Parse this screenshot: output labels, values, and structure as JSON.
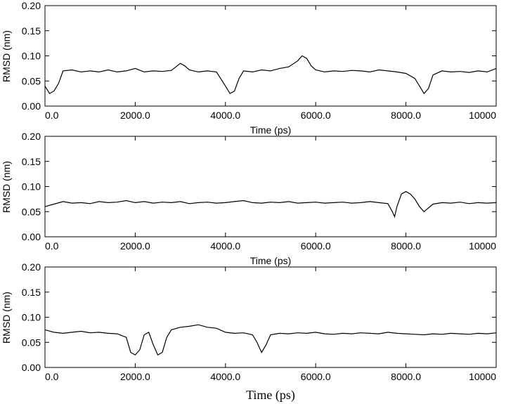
{
  "chart_data": [
    {
      "type": "line",
      "xlabel": "Time (ps)",
      "ylabel": "RMSD (nm)",
      "xlim": [
        0,
        10000
      ],
      "ylim": [
        0,
        0.2
      ],
      "xticks": [
        "0.0",
        "2000.0",
        "4000.0",
        "6000.0",
        "8000.0",
        "10000"
      ],
      "yticks": [
        "0.00",
        "0.05",
        "0.10",
        "0.15",
        "0.20"
      ],
      "line_color": "#000000",
      "series": [
        {
          "x": [
            0,
            100,
            200,
            300,
            400,
            600,
            800,
            1000,
            1200,
            1400,
            1600,
            1800,
            2000,
            2200,
            2400,
            2600,
            2800,
            3000,
            3100,
            3200,
            3400,
            3600,
            3800,
            4000,
            4100,
            4200,
            4300,
            4400,
            4600,
            4800,
            5000,
            5200,
            5400,
            5600,
            5700,
            5800,
            5900,
            6000,
            6200,
            6400,
            6600,
            6800,
            7000,
            7200,
            7400,
            7600,
            7800,
            8000,
            8200,
            8300,
            8400,
            8500,
            8600,
            8800,
            9000,
            9200,
            9400,
            9600,
            9800,
            10000
          ],
          "y": [
            0.04,
            0.025,
            0.03,
            0.045,
            0.07,
            0.072,
            0.068,
            0.07,
            0.068,
            0.072,
            0.068,
            0.07,
            0.075,
            0.068,
            0.07,
            0.069,
            0.071,
            0.085,
            0.08,
            0.072,
            0.068,
            0.07,
            0.068,
            0.04,
            0.025,
            0.03,
            0.055,
            0.07,
            0.068,
            0.072,
            0.07,
            0.075,
            0.078,
            0.09,
            0.1,
            0.095,
            0.08,
            0.072,
            0.068,
            0.07,
            0.069,
            0.071,
            0.07,
            0.068,
            0.072,
            0.07,
            0.068,
            0.065,
            0.055,
            0.04,
            0.025,
            0.035,
            0.062,
            0.07,
            0.068,
            0.069,
            0.067,
            0.07,
            0.068,
            0.075
          ]
        }
      ]
    },
    {
      "type": "line",
      "xlabel": "Time (ps)",
      "ylabel": "RMSD (nm)",
      "xlim": [
        0,
        10000
      ],
      "ylim": [
        0,
        0.2
      ],
      "xticks": [
        "0.0",
        "2000.0",
        "4000.0",
        "6000.0",
        "8000.0",
        "10000"
      ],
      "yticks": [
        "0.00",
        "0.05",
        "0.10",
        "0.15",
        "0.20"
      ],
      "line_color": "#000000",
      "series": [
        {
          "x": [
            0,
            200,
            400,
            600,
            800,
            1000,
            1200,
            1400,
            1600,
            1800,
            2000,
            2200,
            2400,
            2600,
            2800,
            3000,
            3200,
            3400,
            3600,
            3800,
            4000,
            4200,
            4400,
            4600,
            4800,
            5000,
            5200,
            5400,
            5600,
            5800,
            6000,
            6200,
            6400,
            6600,
            6800,
            7000,
            7200,
            7400,
            7600,
            7700,
            7750,
            7800,
            7900,
            8000,
            8100,
            8200,
            8300,
            8400,
            8600,
            8800,
            9000,
            9200,
            9400,
            9600,
            9800,
            10000
          ],
          "y": [
            0.06,
            0.065,
            0.07,
            0.067,
            0.068,
            0.066,
            0.07,
            0.068,
            0.069,
            0.072,
            0.068,
            0.07,
            0.067,
            0.069,
            0.068,
            0.07,
            0.066,
            0.068,
            0.069,
            0.067,
            0.068,
            0.07,
            0.072,
            0.068,
            0.067,
            0.069,
            0.068,
            0.07,
            0.067,
            0.068,
            0.069,
            0.067,
            0.068,
            0.069,
            0.067,
            0.068,
            0.07,
            0.068,
            0.066,
            0.05,
            0.04,
            0.06,
            0.085,
            0.09,
            0.085,
            0.075,
            0.06,
            0.05,
            0.065,
            0.068,
            0.067,
            0.069,
            0.066,
            0.068,
            0.067,
            0.068
          ]
        }
      ]
    },
    {
      "type": "line",
      "xlabel": "Time (ps)",
      "ylabel": "RMSD (nm)",
      "xlim": [
        0,
        10000
      ],
      "ylim": [
        0,
        0.2
      ],
      "xticks": [
        "0.0",
        "2000.0",
        "4000.0",
        "6000.0",
        "8000.0",
        "10000"
      ],
      "yticks": [
        "0.00",
        "0.05",
        "0.10",
        "0.15",
        "0.20"
      ],
      "line_color": "#000000",
      "series": [
        {
          "x": [
            0,
            200,
            400,
            600,
            800,
            1000,
            1200,
            1400,
            1600,
            1800,
            1900,
            2000,
            2100,
            2200,
            2300,
            2400,
            2500,
            2600,
            2700,
            2800,
            3000,
            3200,
            3400,
            3600,
            3800,
            4000,
            4200,
            4400,
            4600,
            4700,
            4800,
            4900,
            5000,
            5200,
            5400,
            5600,
            5800,
            6000,
            6200,
            6400,
            6600,
            6800,
            7000,
            7200,
            7400,
            7600,
            7800,
            8000,
            8200,
            8400,
            8600,
            8800,
            9000,
            9200,
            9400,
            9600,
            9800,
            10000
          ],
          "y": [
            0.075,
            0.07,
            0.068,
            0.07,
            0.072,
            0.069,
            0.07,
            0.068,
            0.067,
            0.06,
            0.03,
            0.025,
            0.035,
            0.065,
            0.07,
            0.045,
            0.025,
            0.03,
            0.06,
            0.075,
            0.08,
            0.082,
            0.085,
            0.08,
            0.078,
            0.07,
            0.068,
            0.069,
            0.065,
            0.05,
            0.03,
            0.045,
            0.065,
            0.068,
            0.067,
            0.069,
            0.068,
            0.07,
            0.067,
            0.066,
            0.068,
            0.067,
            0.069,
            0.068,
            0.067,
            0.07,
            0.068,
            0.067,
            0.066,
            0.065,
            0.067,
            0.066,
            0.068,
            0.067,
            0.066,
            0.068,
            0.067,
            0.069
          ]
        }
      ]
    }
  ]
}
